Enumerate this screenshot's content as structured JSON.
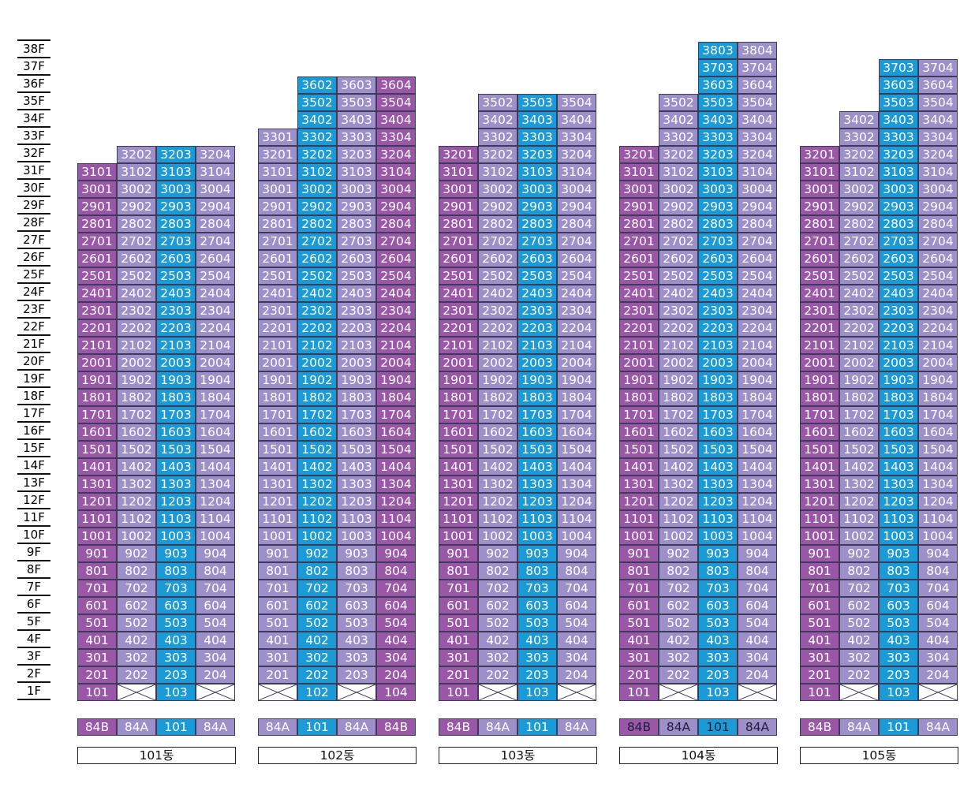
{
  "colors": {
    "84B": "#9a57a8",
    "84A": "#9d8fc9",
    "101": "#1a9ad6"
  },
  "floors": [
    "1F",
    "2F",
    "3F",
    "4F",
    "5F",
    "6F",
    "7F",
    "8F",
    "9F",
    "10F",
    "11F",
    "12F",
    "13F",
    "14F",
    "15F",
    "16F",
    "17F",
    "18F",
    "19F",
    "20F",
    "21F",
    "22F",
    "23F",
    "24F",
    "25F",
    "26F",
    "27F",
    "28F",
    "29F",
    "30F",
    "31F",
    "32F",
    "33F",
    "34F",
    "35F",
    "36F",
    "37F",
    "38F"
  ],
  "buildings": [
    {
      "name": "101동",
      "columns": [
        {
          "suffix": "01",
          "type": "84B",
          "top": 31,
          "empty": []
        },
        {
          "suffix": "02",
          "type": "84A",
          "top": 32,
          "empty": [
            1
          ]
        },
        {
          "suffix": "03",
          "type": "101",
          "top": 32,
          "empty": []
        },
        {
          "suffix": "04",
          "type": "84A",
          "top": 32,
          "empty": [
            1
          ]
        }
      ],
      "types": [
        "84B",
        "84A",
        "101",
        "84A"
      ],
      "dark_type_text": false
    },
    {
      "name": "102동",
      "columns": [
        {
          "suffix": "01",
          "type": "84A",
          "top": 33,
          "empty": [
            1
          ]
        },
        {
          "suffix": "02",
          "type": "101",
          "top": 36,
          "empty": []
        },
        {
          "suffix": "03",
          "type": "84A",
          "top": 36,
          "empty": [
            1
          ]
        },
        {
          "suffix": "04",
          "type": "84B",
          "top": 36,
          "empty": []
        }
      ],
      "types": [
        "84A",
        "101",
        "84A",
        "84B"
      ],
      "dark_type_text": false
    },
    {
      "name": "103동",
      "columns": [
        {
          "suffix": "01",
          "type": "84B",
          "top": 32,
          "empty": []
        },
        {
          "suffix": "02",
          "type": "84A",
          "top": 35,
          "empty": [
            1
          ]
        },
        {
          "suffix": "03",
          "type": "101",
          "top": 35,
          "empty": []
        },
        {
          "suffix": "04",
          "type": "84A",
          "top": 35,
          "empty": [
            1
          ]
        }
      ],
      "types": [
        "84B",
        "84A",
        "101",
        "84A"
      ],
      "dark_type_text": false
    },
    {
      "name": "104동",
      "columns": [
        {
          "suffix": "01",
          "type": "84B",
          "top": 32,
          "empty": []
        },
        {
          "suffix": "02",
          "type": "84A",
          "top": 35,
          "empty": [
            1
          ]
        },
        {
          "suffix": "03",
          "type": "101",
          "top": 38,
          "empty": []
        },
        {
          "suffix": "04",
          "type": "84A",
          "top": 38,
          "empty": [
            1
          ]
        }
      ],
      "types": [
        "84B",
        "84A",
        "101",
        "84A"
      ],
      "dark_type_text": true
    },
    {
      "name": "105동",
      "columns": [
        {
          "suffix": "01",
          "type": "84B",
          "top": 32,
          "empty": []
        },
        {
          "suffix": "02",
          "type": "84A",
          "top": 34,
          "empty": [
            1
          ]
        },
        {
          "suffix": "03",
          "type": "101",
          "top": 37,
          "empty": []
        },
        {
          "suffix": "04",
          "type": "84A",
          "top": 37,
          "empty": [
            1
          ]
        }
      ],
      "types": [
        "84B",
        "84A",
        "101",
        "84A"
      ],
      "dark_type_text": false
    }
  ]
}
